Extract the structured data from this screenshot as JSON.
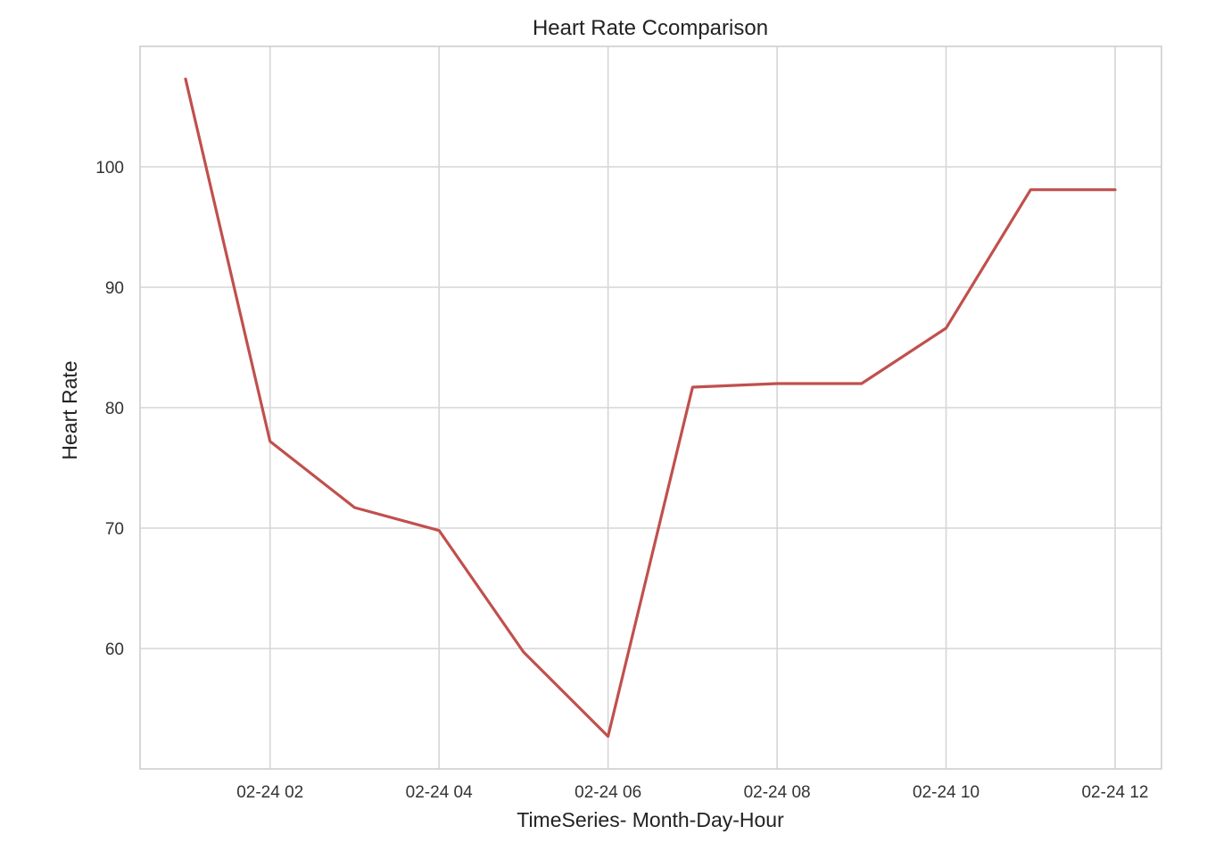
{
  "chart_data": {
    "type": "line",
    "title": "Heart Rate Ccomparison",
    "xlabel": "TimeSeries- Month-Day-Hour",
    "ylabel": "Heart Rate",
    "x": [
      "02-24 01",
      "02-24 02",
      "02-24 03",
      "02-24 04",
      "02-24 05",
      "02-24 06",
      "02-24 07",
      "02-24 08",
      "02-24 09",
      "02-24 10",
      "02-24 11",
      "02-24 12"
    ],
    "x_ticks": [
      "02-24 02",
      "02-24 04",
      "02-24 06",
      "02-24 08",
      "02-24 10",
      "02-24 12"
    ],
    "y_ticks": [
      60,
      70,
      80,
      90,
      100
    ],
    "ylim": [
      50,
      110
    ],
    "grid": true,
    "series": [
      {
        "color": "#c0504d",
        "values": [
          107.3,
          77.2,
          71.7,
          69.8,
          59.7,
          52.7,
          81.7,
          82.0,
          82.0,
          86.6,
          98.1,
          98.1
        ]
      }
    ]
  }
}
